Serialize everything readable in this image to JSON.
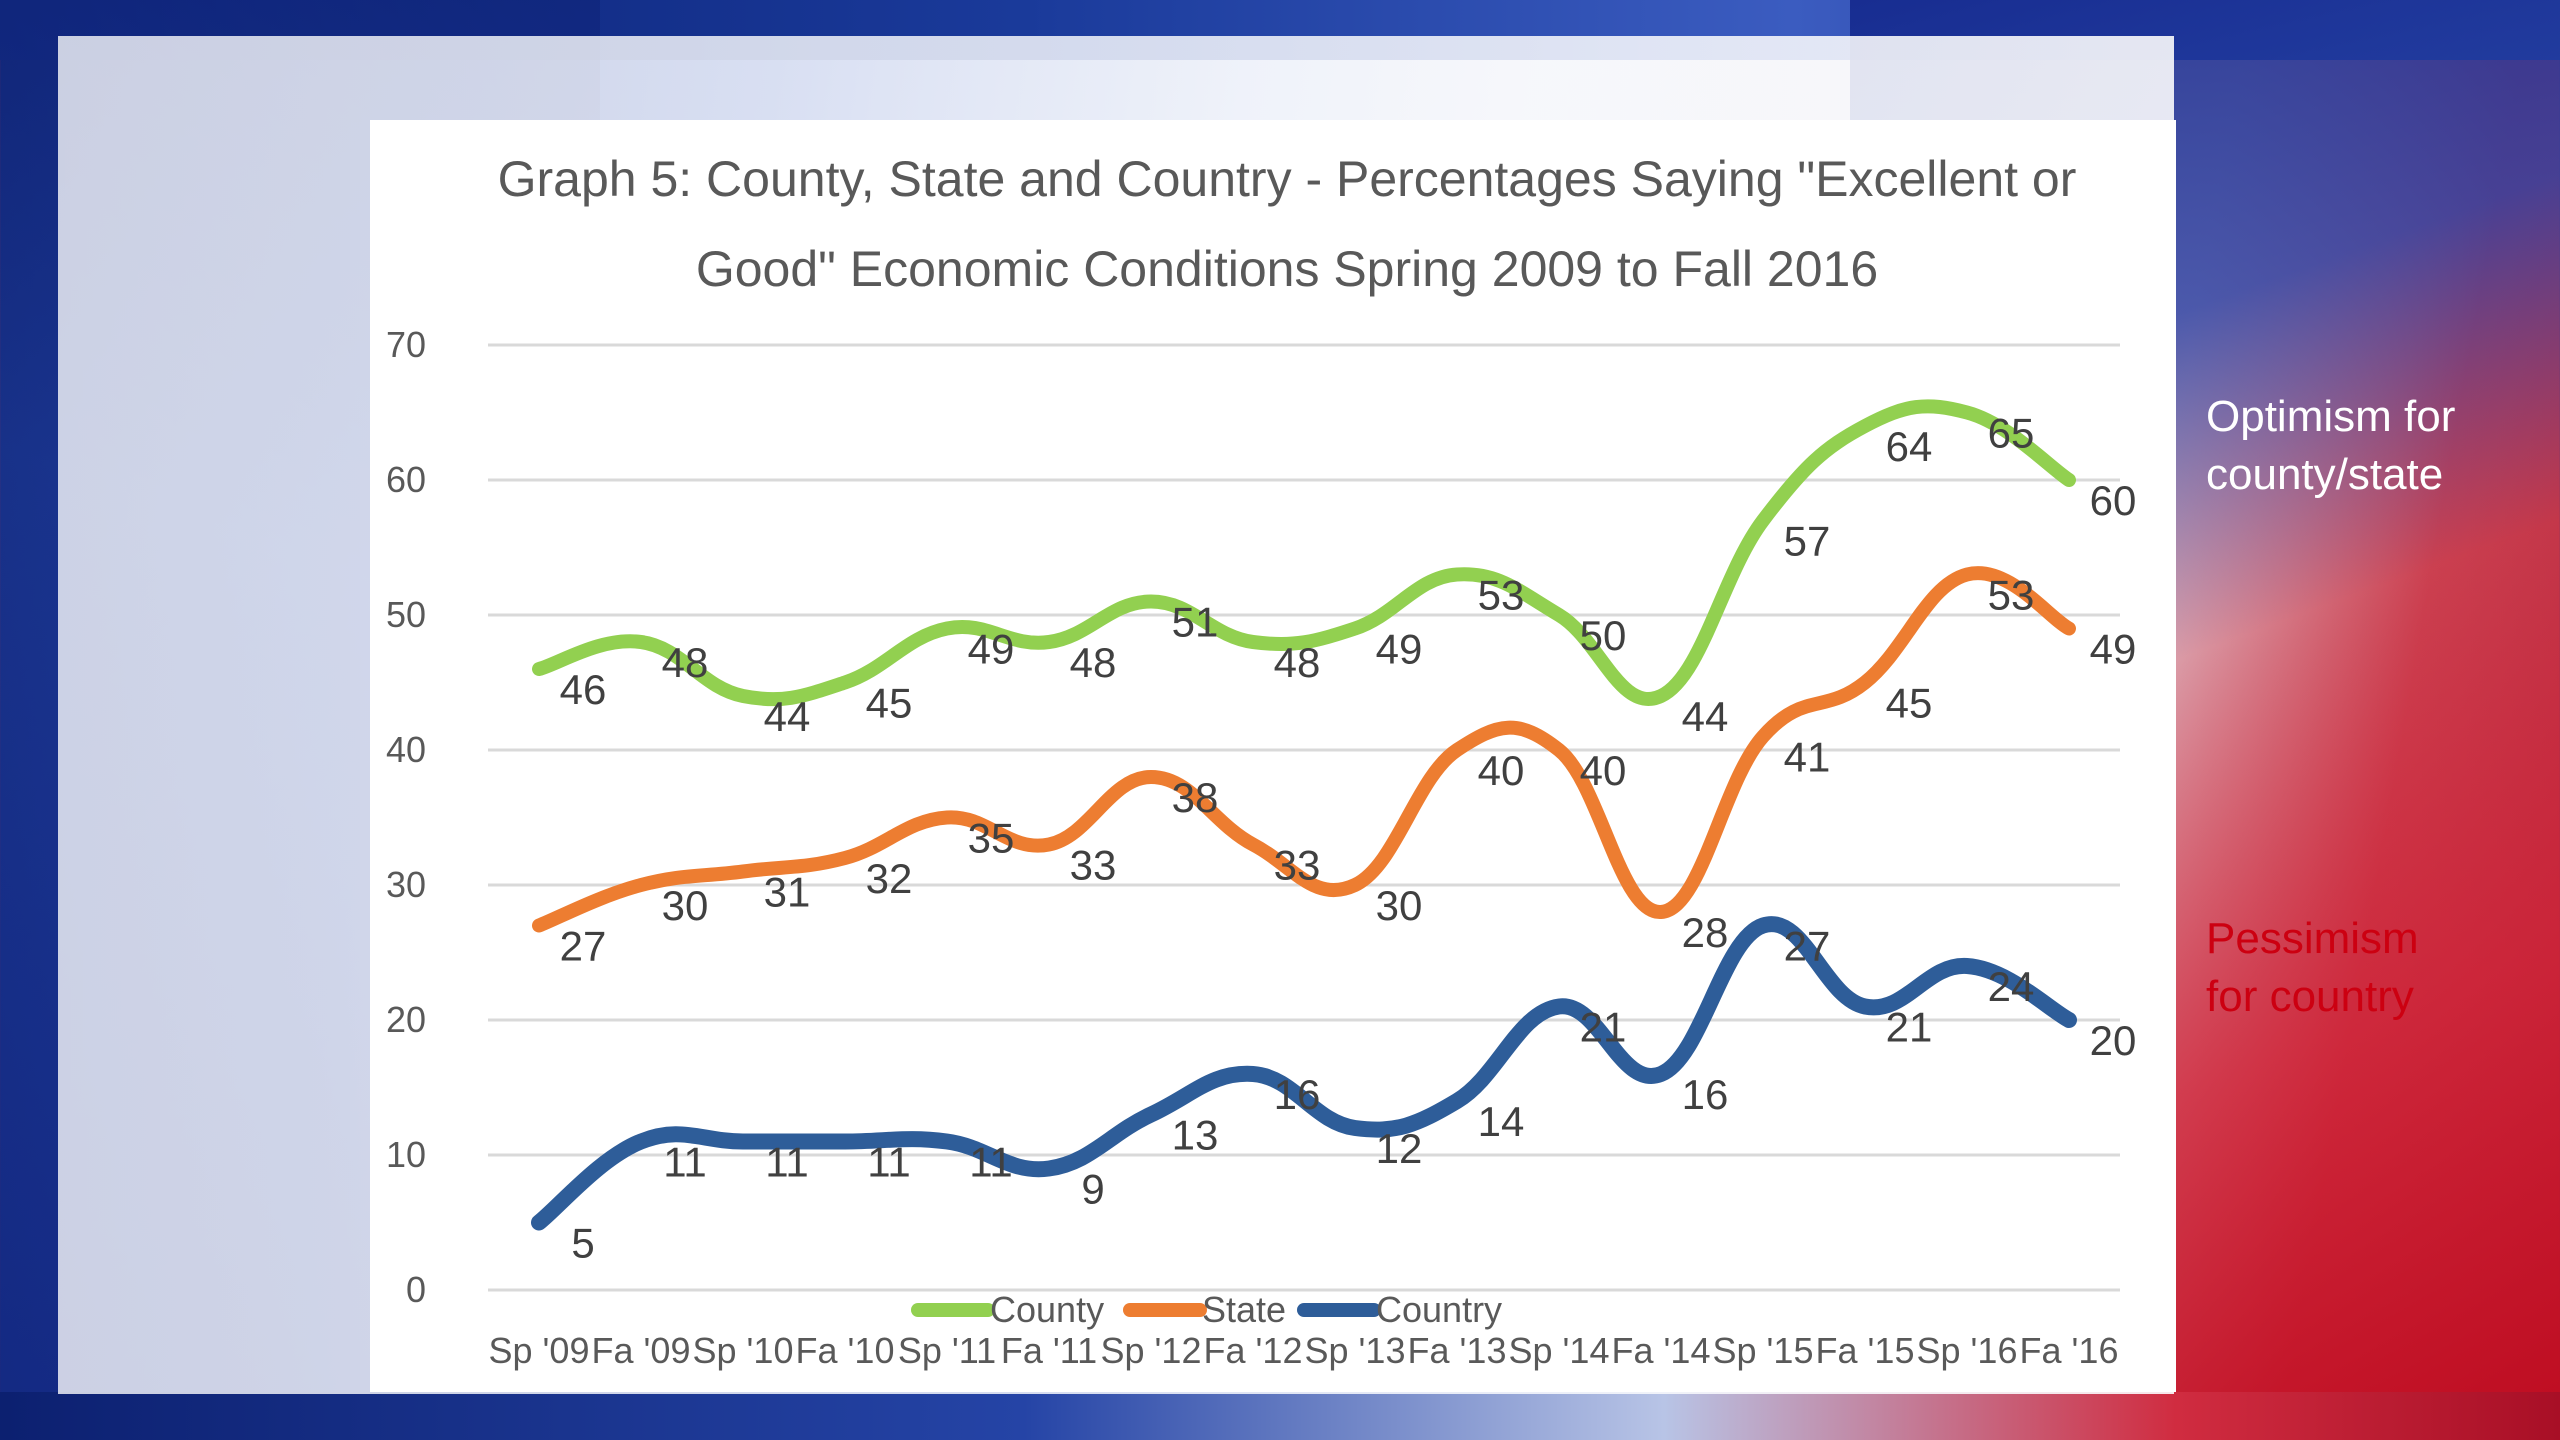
{
  "side_labels": {
    "optimism_line1": "Optimism for",
    "optimism_line2": "county/state",
    "pessimism_line1": "Pessimism",
    "pessimism_line2": "for country"
  },
  "colors": {
    "county": "#92d050",
    "state": "#ed7d31",
    "country": "#2e5d99",
    "optimism_text": "#ffffff",
    "pessimism_text": "#cc0011"
  },
  "chart_data": {
    "type": "line",
    "title_line1": "Graph 5: County, State and Country - Percentages Saying \"Excellent or",
    "title_line2": "Good\" Economic Conditions Spring 2009 to Fall 2016",
    "categories": [
      "Sp '09",
      "Fa '09",
      "Sp '10",
      "Fa '10",
      "Sp '11",
      "Fa '11",
      "Sp '12",
      "Fa '12",
      "Sp '13",
      "Fa '13",
      "Sp '14",
      "Fa '14",
      "Sp '15",
      "Fa '15",
      "Sp '16",
      "Fa '16"
    ],
    "ylim": [
      0,
      70
    ],
    "yticks": [
      0,
      10,
      20,
      30,
      40,
      50,
      60,
      70
    ],
    "grid": true,
    "legend": "bottom",
    "series": [
      {
        "name": "County",
        "values": [
          46,
          48,
          44,
          45,
          49,
          48,
          51,
          48,
          49,
          53,
          50,
          44,
          57,
          64,
          65,
          60
        ]
      },
      {
        "name": "State",
        "values": [
          27,
          30,
          31,
          32,
          35,
          33,
          38,
          33,
          30,
          40,
          40,
          28,
          41,
          45,
          53,
          49
        ]
      },
      {
        "name": "Country",
        "values": [
          5,
          11,
          11,
          11,
          11,
          9,
          13,
          16,
          12,
          14,
          21,
          16,
          27,
          21,
          24,
          20
        ]
      }
    ]
  }
}
